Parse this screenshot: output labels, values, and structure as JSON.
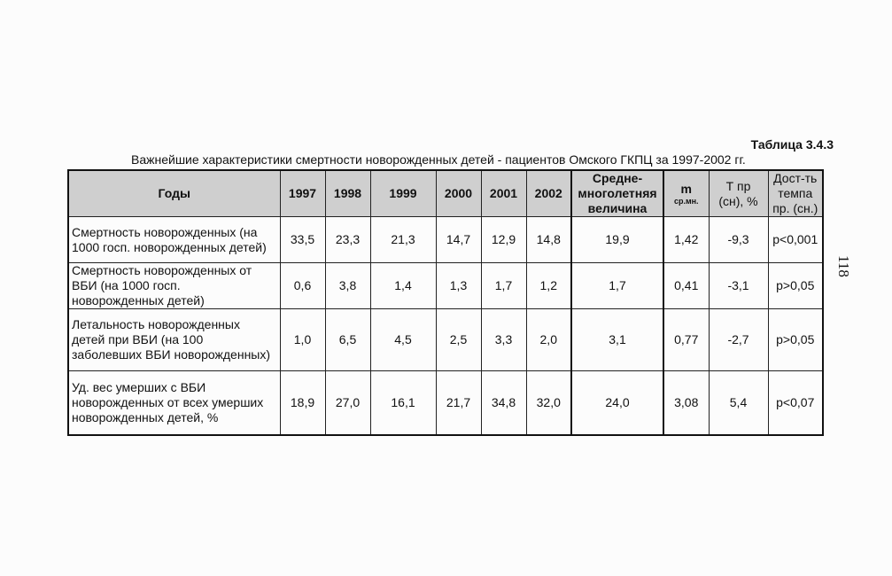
{
  "table_number": "Таблица 3.4.3",
  "caption": "Важнейшие характеристики смертности новорожденных детей - пациентов Омского ГКПЦ за 1997-2002 гг.",
  "page_number": "118",
  "headers": {
    "years": "Годы",
    "y1997": "1997",
    "y1998": "1998",
    "y1999": "1999",
    "y2000": "2000",
    "y2001": "2001",
    "y2002": "2002",
    "avg_line1": "Средне-",
    "avg_line2": "многолетняя",
    "avg_line3": "величина",
    "m": "m",
    "m_sub": "ср.мн.",
    "t_line1": "Т пр",
    "t_line2": "(сн), %",
    "sig_line1": "Дост-ть",
    "sig_line2": "темпа",
    "sig_line3": "пр. (сн.)"
  },
  "rows": [
    {
      "label_lines": [
        "Смертность новорожденных (на",
        "1000 госп. новорожденных детей)"
      ],
      "v1997": "33,5",
      "v1998": "23,3",
      "v1999": "21,3",
      "v2000": "14,7",
      "v2001": "12,9",
      "v2002": "14,8",
      "avg": "19,9",
      "m": "1,42",
      "t": "-9,3",
      "sig": "p<0,001"
    },
    {
      "label_lines": [
        "Смертность новорожденных от",
        "ВБИ (на 1000 госп.",
        "новорожденных детей)"
      ],
      "v1997": "0,6",
      "v1998": "3,8",
      "v1999": "1,4",
      "v2000": "1,3",
      "v2001": "1,7",
      "v2002": "1,2",
      "avg": "1,7",
      "m": "0,41",
      "t": "-3,1",
      "sig": "p>0,05"
    },
    {
      "label_lines": [
        "Летальность новорожденных",
        "детей при ВБИ (на 100",
        "заболевших ВБИ новорожденных)"
      ],
      "v1997": "1,0",
      "v1998": "6,5",
      "v1999": "4,5",
      "v2000": "2,5",
      "v2001": "3,3",
      "v2002": "2,0",
      "avg": "3,1",
      "m": "0,77",
      "t": "-2,7",
      "sig": "p>0,05"
    },
    {
      "label_lines": [
        "Уд. вес умерших с ВБИ",
        "новорожденных от всех умерших",
        "новорожденных детей, %"
      ],
      "v1997": "18,9",
      "v1998": "27,0",
      "v1999": "16,1",
      "v2000": "21,7",
      "v2001": "34,8",
      "v2002": "32,0",
      "avg": "24,0",
      "m": "3,08",
      "t": "5,4",
      "sig": "p<0,07"
    }
  ]
}
